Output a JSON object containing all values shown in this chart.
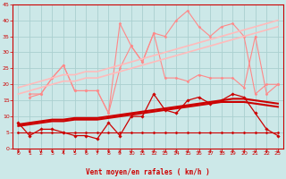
{
  "background_color": "#cce8e8",
  "grid_color": "#aacfcf",
  "xlabel": "Vent moyen/en rafales ( km/h )",
  "x_ticks": [
    0,
    1,
    2,
    3,
    4,
    5,
    6,
    7,
    8,
    9,
    10,
    11,
    12,
    13,
    14,
    15,
    16,
    17,
    18,
    19,
    20,
    21,
    22,
    23
  ],
  "ylim": [
    0,
    45
  ],
  "yticks": [
    0,
    5,
    10,
    15,
    20,
    25,
    30,
    35,
    40,
    45
  ],
  "lines": [
    {
      "name": "light_zigzag1",
      "color": "#ff8888",
      "lw": 0.8,
      "marker": "D",
      "markersize": 1.5,
      "y": [
        17,
        17,
        22,
        26,
        18,
        18,
        18,
        11,
        25,
        32,
        27,
        36,
        22,
        22,
        21,
        23,
        22,
        22,
        22,
        19,
        35,
        17,
        20
      ]
    },
    {
      "name": "light_zigzag2",
      "color": "#ff8888",
      "lw": 0.8,
      "marker": "D",
      "markersize": 1.5,
      "y": [
        16,
        17,
        22,
        26,
        18,
        18,
        18,
        11,
        39,
        32,
        27,
        36,
        35,
        40,
        43,
        38,
        35,
        38,
        39,
        35,
        17,
        20,
        20
      ]
    },
    {
      "name": "trend_light1",
      "color": "#ffbbbb",
      "lw": 1.2,
      "marker": null,
      "y": [
        17,
        18,
        19,
        20,
        21,
        21,
        22,
        22,
        23,
        24,
        25,
        26,
        27,
        28,
        29,
        30,
        31,
        32,
        33,
        34,
        35,
        36,
        37,
        38
      ]
    },
    {
      "name": "trend_light2",
      "color": "#ffbbbb",
      "lw": 1.2,
      "marker": null,
      "y": [
        19,
        20,
        21,
        22,
        23,
        23,
        24,
        24,
        25,
        26,
        27,
        28,
        29,
        30,
        31,
        32,
        33,
        34,
        35,
        36,
        37,
        38,
        39,
        40
      ]
    },
    {
      "name": "dark_flat",
      "color": "#cc0000",
      "lw": 0.8,
      "marker": "D",
      "markersize": 1.5,
      "y": [
        5,
        5,
        5,
        5,
        5,
        5,
        5,
        5,
        5,
        5,
        5,
        5,
        5,
        5,
        5,
        5,
        5,
        5,
        5,
        5,
        5,
        5,
        5,
        5
      ]
    },
    {
      "name": "dark_zigzag",
      "color": "#cc0000",
      "lw": 0.9,
      "marker": "D",
      "markersize": 1.8,
      "y": [
        8,
        4,
        6,
        6,
        5,
        4,
        4,
        3,
        8,
        4,
        10,
        10,
        17,
        12,
        11,
        15,
        16,
        14,
        15,
        17,
        16,
        11,
        6,
        4
      ]
    },
    {
      "name": "trend_dark1",
      "color": "#cc0000",
      "lw": 1.5,
      "marker": null,
      "y": [
        7.5,
        8.0,
        8.5,
        9.0,
        9.0,
        9.5,
        9.5,
        9.5,
        10.0,
        10.5,
        11.0,
        11.5,
        12.0,
        12.5,
        13.0,
        13.5,
        14.0,
        14.5,
        15.0,
        15.5,
        15.5,
        15.0,
        14.5,
        14.0
      ]
    },
    {
      "name": "trend_dark2",
      "color": "#cc0000",
      "lw": 1.5,
      "marker": null,
      "y": [
        7.0,
        7.5,
        8.0,
        8.5,
        8.5,
        9.0,
        9.0,
        9.0,
        9.5,
        10.0,
        10.5,
        11.0,
        11.5,
        12.0,
        12.5,
        13.0,
        13.5,
        14.0,
        14.5,
        14.5,
        14.5,
        14.0,
        13.5,
        13.0
      ]
    }
  ]
}
